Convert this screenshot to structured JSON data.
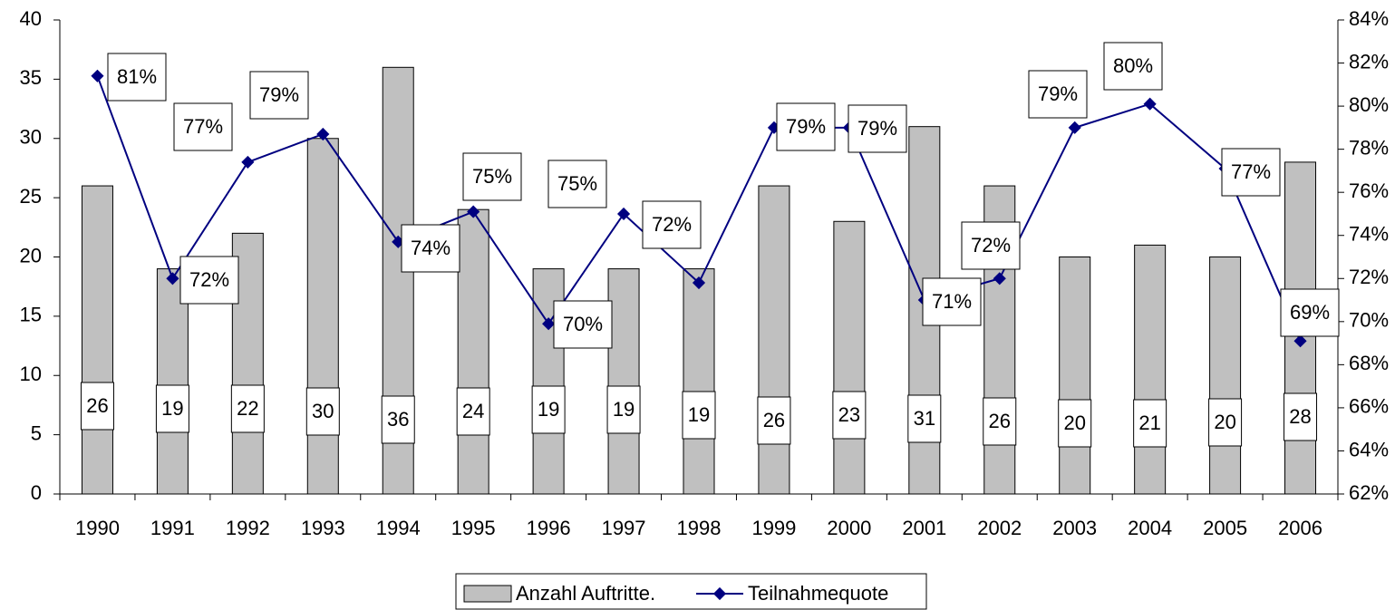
{
  "chart_data": {
    "type": "bar",
    "categories": [
      "1990",
      "1991",
      "1992",
      "1993",
      "1994",
      "1995",
      "1996",
      "1997",
      "1998",
      "1999",
      "2000",
      "2001",
      "2002",
      "2003",
      "2004",
      "2005",
      "2006"
    ],
    "series": [
      {
        "name": "Anzahl Auftritte.",
        "type": "bar",
        "color": "#c0c0c0",
        "values": [
          26,
          19,
          22,
          30,
          36,
          24,
          19,
          19,
          19,
          26,
          23,
          31,
          26,
          20,
          21,
          20,
          28
        ]
      },
      {
        "name": "Teilnahmequote",
        "type": "line",
        "axis": "y2",
        "color": "#000080",
        "values": [
          81.4,
          72.0,
          77.4,
          78.7,
          73.7,
          75.1,
          69.9,
          75.0,
          71.8,
          79.0,
          79.0,
          71.0,
          72.0,
          79.0,
          80.1,
          77.1,
          69.1
        ],
        "value_labels": [
          "81%",
          "72%",
          "77%",
          "79%",
          "74%",
          "75%",
          "70%",
          "75%",
          "72%",
          "79%",
          "79%",
          "71%",
          "72%",
          "79%",
          "80%",
          "77%",
          "69%"
        ]
      }
    ],
    "ylim": [
      0,
      40
    ],
    "yticks": [
      0,
      5,
      10,
      15,
      20,
      25,
      30,
      35,
      40
    ],
    "y2lim": [
      62,
      84
    ],
    "y2ticks": [
      {
        "value": 62,
        "label": "62%"
      },
      {
        "value": 64,
        "label": "64%"
      },
      {
        "value": 66,
        "label": "66%"
      },
      {
        "value": 68,
        "label": "68%"
      },
      {
        "value": 70,
        "label": "70%"
      },
      {
        "value": 72,
        "label": "72%"
      },
      {
        "value": 74,
        "label": "74%"
      },
      {
        "value": 76,
        "label": "76%"
      },
      {
        "value": 78,
        "label": "78%"
      },
      {
        "value": 80,
        "label": "80%"
      },
      {
        "value": 82,
        "label": "82%"
      },
      {
        "value": 84,
        "label": "84%"
      }
    ],
    "legend": "bottom"
  }
}
